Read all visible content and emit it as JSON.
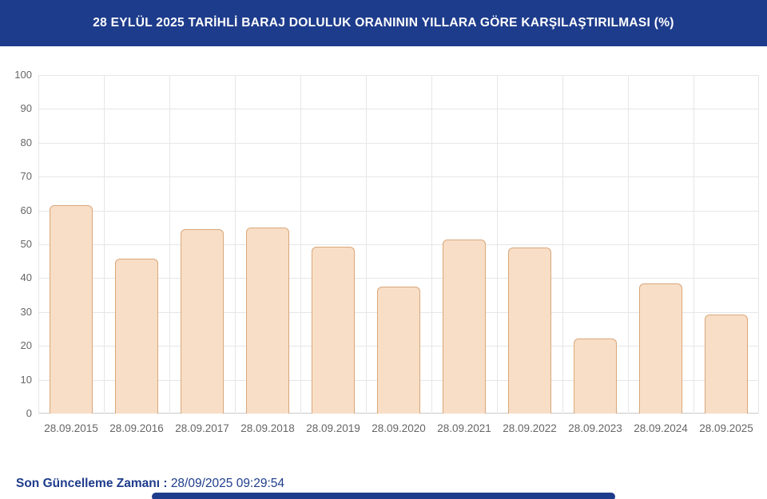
{
  "header": {
    "title": "28 EYLÜL 2025 TARİHLİ BARAJ DOLULUK ORANININ YILLARA GÖRE KARŞILAŞTIRILMASI (%)",
    "bg_color": "#1e3c8c",
    "text_color": "#ffffff"
  },
  "chart_data": {
    "type": "bar",
    "categories": [
      "28.09.2015",
      "28.09.2016",
      "28.09.2017",
      "28.09.2018",
      "28.09.2019",
      "28.09.2020",
      "28.09.2021",
      "28.09.2022",
      "28.09.2023",
      "28.09.2024",
      "28.09.2025"
    ],
    "values": [
      61.6,
      45.8,
      54.4,
      54.9,
      49.4,
      37.6,
      51.4,
      49.0,
      22.1,
      38.5,
      29.3
    ],
    "title": "28 EYLÜL 2025 TARİHLİ BARAJ DOLULUK ORANININ YILLARA GÖRE KARŞILAŞTIRILMASI (%)",
    "xlabel": "",
    "ylabel": "",
    "ylim": [
      0,
      100
    ],
    "ytick_step": 10,
    "grid": true,
    "legend": false,
    "bar_fill": "#f8dec6",
    "bar_border": "#d9a77b",
    "grid_color": "#e6e6e6",
    "axis_line_color": "#c9c9c9",
    "axis_label_color": "#666666"
  },
  "footer": {
    "label": "Son Güncelleme Zamanı",
    "separator": " : ",
    "value": "28/09/2025 09:29:54",
    "accent_color": "#1e3c8c"
  }
}
